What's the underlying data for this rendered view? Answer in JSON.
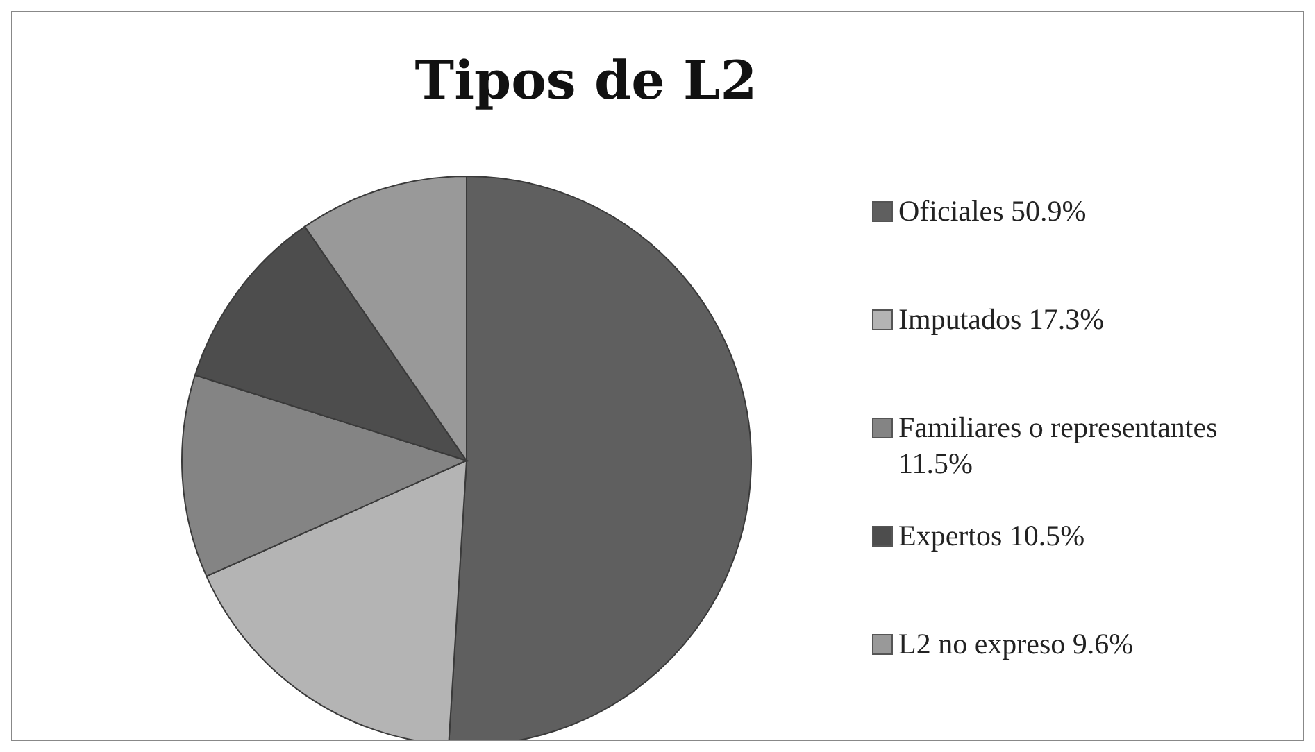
{
  "chart_data": {
    "type": "pie",
    "title": "Tipos de L2",
    "categories": [
      "Oficiales",
      "Imputados",
      "Familiares o representantes",
      "Expertos",
      "L2 no expreso"
    ],
    "values": [
      50.9,
      17.3,
      11.5,
      10.5,
      9.6
    ],
    "value_labels": [
      "50.9%",
      "17.3%",
      "11.5%",
      "10.5%",
      "9.6%"
    ],
    "colors": [
      "#5f5f5f",
      "#b4b4b4",
      "#848484",
      "#4d4d4d",
      "#999999"
    ],
    "legend": "right"
  }
}
